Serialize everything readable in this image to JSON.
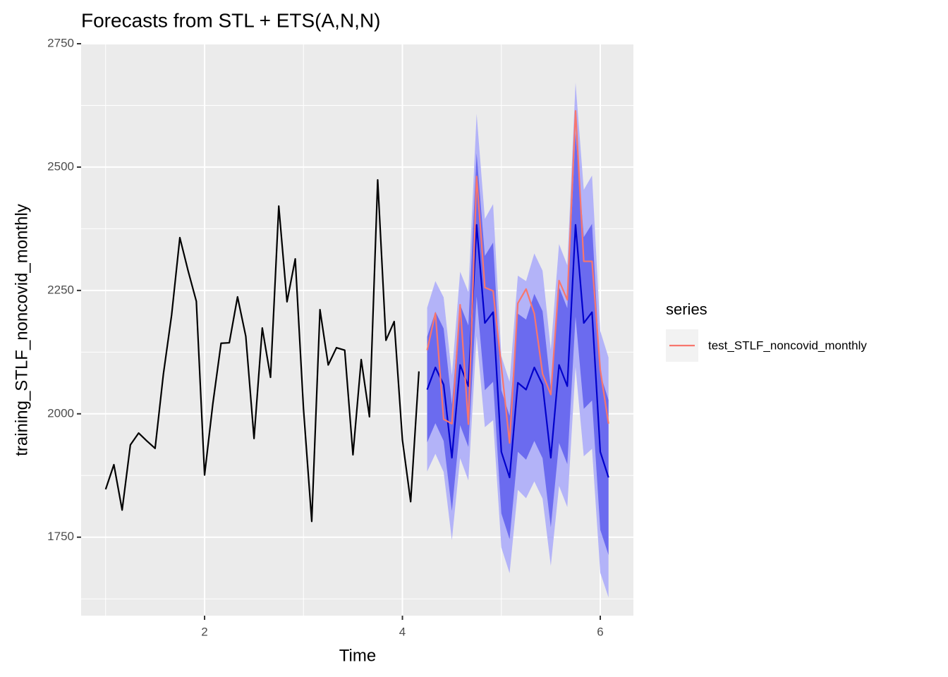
{
  "chart_data": {
    "type": "line",
    "title": "Forecasts from STL +  ETS(A,N,N)",
    "x_label": "Time",
    "y_label": "training_STLF_noncovid_monthly",
    "xlim": [
      0.752,
      6.335
    ],
    "ylim": [
      1591,
      2750
    ],
    "xticks": [
      2,
      4,
      6
    ],
    "yticks": [
      1750,
      2000,
      2250,
      2500,
      2750
    ],
    "minor_xticks": [
      1,
      3,
      5
    ],
    "minor_yticks": [
      1625,
      1875,
      2125,
      2375,
      2625
    ],
    "grid": true,
    "legend_title": "series",
    "legend_position": "right",
    "training": {
      "color": "#000000",
      "x": [
        1,
        1.0833,
        1.1667,
        1.25,
        1.3333,
        1.4167,
        1.5,
        1.5833,
        1.6667,
        1.75,
        1.8333,
        1.9167,
        2,
        2.0833,
        2.1667,
        2.25,
        2.3333,
        2.4167,
        2.5,
        2.5833,
        2.6667,
        2.75,
        2.8333,
        2.9167,
        3,
        3.0833,
        3.1667,
        3.25,
        3.3333,
        3.4167,
        3.5,
        3.5833,
        3.6667,
        3.75,
        3.8333,
        3.9167,
        4,
        4.0833,
        4.1667
      ],
      "values": [
        1847,
        1897,
        1805,
        1937,
        1961,
        1945,
        1930,
        2080,
        2200,
        2357,
        2290,
        2228,
        1876,
        2020,
        2143,
        2144,
        2237,
        2157,
        1950,
        2174,
        2074,
        2421,
        2227,
        2314,
        2010,
        1782,
        2211,
        2099,
        2134,
        2129,
        1917,
        2110,
        1994,
        2474,
        2149,
        2187,
        1947,
        1822,
        2086
      ]
    },
    "forecast": {
      "color": "#0000cc",
      "x": [
        4.25,
        4.3333,
        4.4167,
        4.5,
        4.5833,
        4.6667,
        4.75,
        4.8333,
        4.9167,
        5,
        5.0833,
        5.1667,
        5.25,
        5.3333,
        5.4167,
        5.5,
        5.5833,
        5.6667,
        5.75,
        5.8333,
        5.9167,
        6,
        6.0833
      ],
      "values": [
        2049,
        2094,
        2059,
        1911,
        2099,
        2056,
        2383,
        2184,
        2206,
        1923,
        1871,
        2063,
        2049,
        2094,
        2059,
        1911,
        2099,
        2056,
        2383,
        2184,
        2206,
        1923,
        1871
      ],
      "bands": [
        {
          "color": "#b3b3f8",
          "lower": [
            1883,
            1919,
            1882,
            1744,
            1910,
            1865,
            2158,
            1973,
            1987,
            1729,
            1677,
            1846,
            1829,
            1863,
            1828,
            1692,
            1854,
            1811,
            2095,
            1914,
            1929,
            1678,
            1628
          ],
          "upper": [
            2215,
            2269,
            2236,
            2078,
            2288,
            2247,
            2608,
            2395,
            2425,
            2117,
            2065,
            2280,
            2269,
            2325,
            2290,
            2130,
            2344,
            2301,
            2671,
            2454,
            2483,
            2168,
            2114
          ]
        },
        {
          "color": "#6b6bef",
          "lower": [
            1942,
            1981,
            1945,
            1803,
            1977,
            1933,
            2238,
            2048,
            2065,
            1798,
            1746,
            1923,
            1907,
            1945,
            1910,
            1770,
            1941,
            1898,
            2197,
            2010,
            2027,
            1765,
            1714
          ],
          "upper": [
            2156,
            2207,
            2173,
            2019,
            2221,
            2179,
            2528,
            2320,
            2347,
            2048,
            1996,
            2203,
            2191,
            2243,
            2208,
            2052,
            2257,
            2214,
            2569,
            2358,
            2385,
            2081,
            2028
          ]
        }
      ]
    },
    "series": [
      {
        "name": "test_STLF_noncovid_monthly",
        "color": "#f8766d",
        "x": [
          4.25,
          4.3333,
          4.4167,
          4.5,
          4.5833,
          4.6667,
          4.75,
          4.8333,
          4.9167,
          5,
          5.0833,
          5.1667,
          5.25,
          5.3333,
          5.4167,
          5.5,
          5.5833,
          5.6667,
          5.75,
          5.8333,
          5.9167,
          6,
          6.0833
        ],
        "values": [
          2129,
          2204,
          1989,
          1980,
          2221,
          1979,
          2481,
          2256,
          2249,
          2096,
          1941,
          2224,
          2253,
          2203,
          2081,
          2039,
          2270,
          2231,
          2614,
          2309,
          2309,
          2089,
          1980
        ]
      }
    ]
  }
}
